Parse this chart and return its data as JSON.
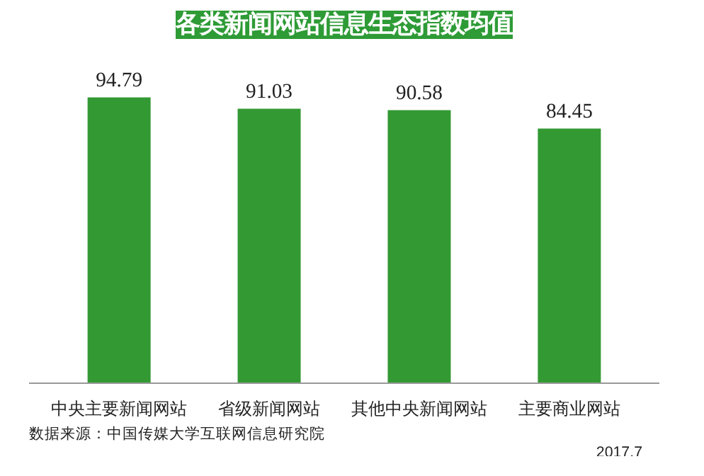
{
  "chart_data": {
    "type": "bar",
    "title": "各类新闻网站信息生态指数均值",
    "categories": [
      "中央主要新闻网站",
      "省级新闻网站",
      "其他中央新闻网站",
      "主要商业网站"
    ],
    "values": [
      94.79,
      91.03,
      90.58,
      84.45
    ],
    "color": "#339933",
    "data_labels": true,
    "grid": false,
    "annotations": [
      "数据来源：中国传媒大学互联网信息研究院",
      "2017.7"
    ]
  }
}
